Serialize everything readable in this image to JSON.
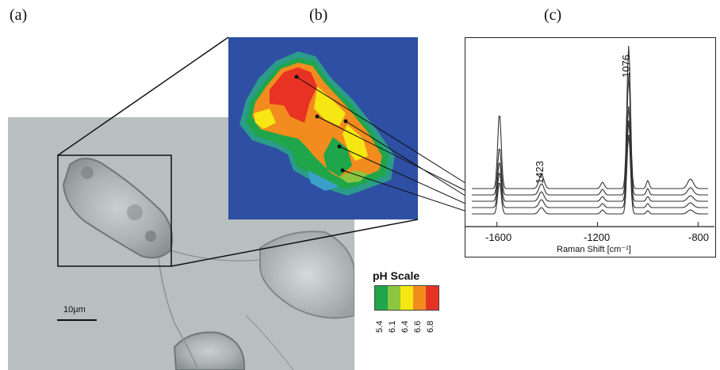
{
  "panels": {
    "a_label": "(a)",
    "b_label": "(b)",
    "c_label": "(c)"
  },
  "micrograph": {
    "scale_bar_label": "10μm"
  },
  "ph_scale": {
    "title": "pH Scale",
    "ticks": [
      "5.4",
      "6.1",
      "6.4",
      "6.6",
      "6.8"
    ],
    "colors": [
      "#1fa64a",
      "#8cc63f",
      "#f5e614",
      "#f28c1e",
      "#e83223"
    ]
  },
  "chart_data": {
    "type": "line",
    "title": "",
    "xlabel": "Raman Shift [cm⁻¹]",
    "ylabel": "",
    "x_ticks": [
      -1600,
      -1200,
      -800
    ],
    "xlim": [
      -1700,
      -760
    ],
    "peak_labels": [
      "1423",
      "1076"
    ],
    "series_count": 5,
    "peaks_cm": [
      -1590,
      -1423,
      -1076
    ]
  },
  "colors": {
    "map_background": "#2e4fa3",
    "spectrum_line": "#333333"
  }
}
